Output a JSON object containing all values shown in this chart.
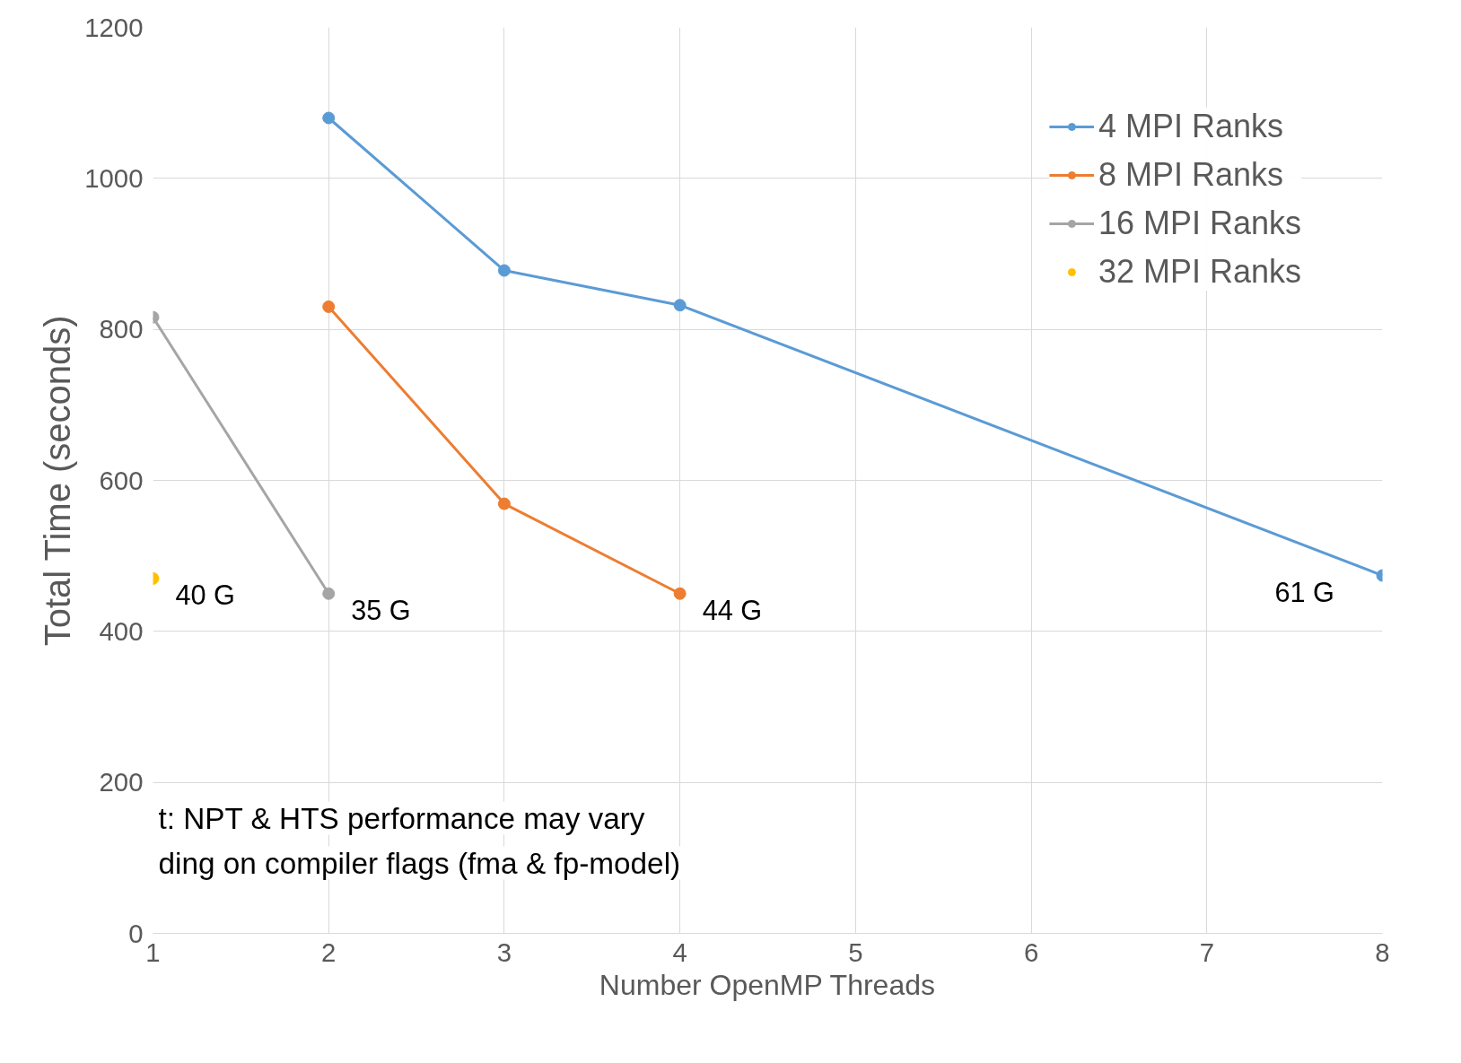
{
  "chart_data": {
    "type": "line",
    "xlabel": "Number OpenMP Threads",
    "ylabel": "Total Time (seconds)",
    "x": [
      1,
      2,
      3,
      4,
      5,
      6,
      7,
      8
    ],
    "series": [
      {
        "name": "4 MPI Ranks",
        "color": "#5b9bd5",
        "values": [
          null,
          1080,
          878,
          832,
          null,
          null,
          null,
          474
        ]
      },
      {
        "name": "8 MPI Ranks",
        "color": "#ed7d31",
        "values": [
          null,
          830,
          569,
          450,
          null,
          null,
          null,
          null
        ]
      },
      {
        "name": "16 MPI Ranks",
        "color": "#a5a5a5",
        "values": [
          816,
          450,
          null,
          null,
          null,
          null,
          null,
          null
        ]
      },
      {
        "name": "32 MPI Ranks",
        "color": "#ffc000",
        "values": [
          470,
          null,
          null,
          null,
          null,
          null,
          null,
          null
        ]
      }
    ],
    "xlim": [
      1,
      8
    ],
    "xticks": [
      1,
      2,
      3,
      4,
      5,
      6,
      7,
      8
    ],
    "ylim": [
      0,
      1200
    ],
    "yticks": [
      0,
      200,
      400,
      600,
      800,
      1000,
      1200
    ],
    "grid": true,
    "legend": "top right",
    "marker": "circle",
    "line_style": "solid",
    "annotations": [
      {
        "text": "40 G",
        "x": 1,
        "y": 470
      },
      {
        "text": "35 G",
        "x": 2,
        "y": 450
      },
      {
        "text": "44 G",
        "x": 4,
        "y": 450
      },
      {
        "text": "61 G",
        "x": 8,
        "y": 474
      },
      "t: NPT & HTS performance may vary",
      "ding on compiler flags (fma & fp-model)"
    ]
  }
}
